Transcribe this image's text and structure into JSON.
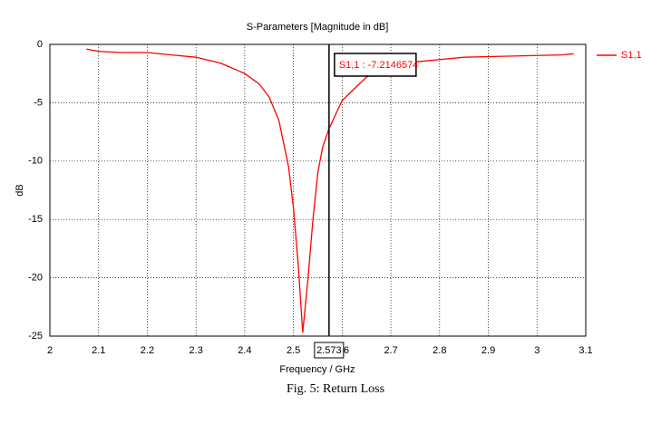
{
  "chart_data": {
    "type": "line",
    "title": "S-Parameters [Magnitude in dB]",
    "x_label": "Frequency / GHz",
    "y_label": "dB",
    "x": [
      2.075,
      2.1,
      2.15,
      2.2,
      2.25,
      2.3,
      2.35,
      2.4,
      2.43,
      2.45,
      2.47,
      2.49,
      2.5,
      2.51,
      2.519,
      2.53,
      2.54,
      2.55,
      2.56,
      2.573,
      2.6,
      2.65,
      2.7,
      2.75,
      2.8,
      2.85,
      2.9,
      2.95,
      3.0,
      3.05,
      3.075
    ],
    "series": [
      {
        "name": "S1,1",
        "color": "#ff0000",
        "values": [
          -0.4,
          -0.6,
          -0.7,
          -0.7,
          -0.9,
          -1.1,
          -1.6,
          -2.5,
          -3.4,
          -4.5,
          -6.5,
          -10.5,
          -14,
          -19,
          -24.7,
          -20,
          -15,
          -11,
          -8.8,
          -7.2146574,
          -4.8,
          -2.8,
          -1.9,
          -1.5,
          -1.3,
          -1.1,
          -1.05,
          -1.0,
          -0.95,
          -0.9,
          -0.8
        ]
      }
    ],
    "xlim": [
      2,
      3.1
    ],
    "ylim": [
      -25,
      0
    ],
    "xticks": [
      2,
      2.1,
      2.2,
      2.3,
      2.4,
      2.5,
      2.6,
      2.7,
      2.8,
      2.9,
      3,
      3.1
    ],
    "yticks": [
      0,
      -5,
      -10,
      -15,
      -20,
      -25
    ],
    "grid": true,
    "marker": {
      "x": 2.573,
      "label": "S1,1 : -7.2146574"
    }
  },
  "caption": "Fig. 5: Return Loss"
}
